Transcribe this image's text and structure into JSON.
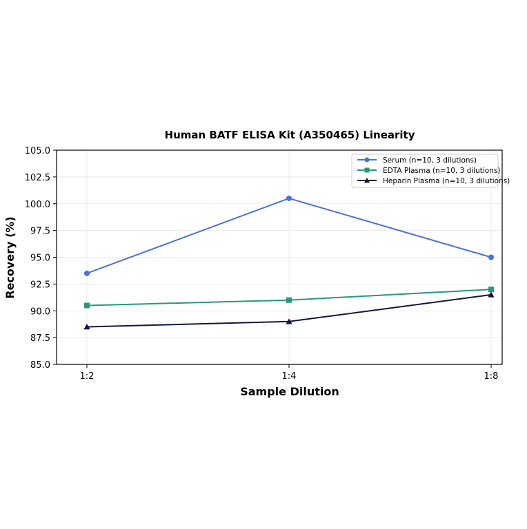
{
  "chart_data": {
    "type": "line",
    "title": "Human BATF ELISA Kit (A350465) Linearity",
    "xlabel": "Sample Dilution",
    "ylabel": "Recovery (%)",
    "categories": [
      "1:2",
      "1:4",
      "1:8"
    ],
    "ylim": [
      85.0,
      105.0
    ],
    "yticks": [
      "85.0",
      "87.5",
      "90.0",
      "92.5",
      "95.0",
      "97.5",
      "100.0",
      "102.5",
      "105.0"
    ],
    "grid": true,
    "legend_position": "top-right",
    "series": [
      {
        "name": "Serum (n=10, 3 dilutions)",
        "values": [
          93.5,
          100.5,
          95.0
        ],
        "color": "#4c6fd6",
        "marker": "circle"
      },
      {
        "name": "EDTA Plasma (n=10, 3 dilutions)",
        "values": [
          90.5,
          91.0,
          92.0
        ],
        "color": "#25997a",
        "marker": "square"
      },
      {
        "name": "Heparin Plasma (n=10, 3 dilutions)",
        "values": [
          88.5,
          89.0,
          91.5
        ],
        "color": "#0f1838",
        "marker": "triangle"
      }
    ]
  }
}
